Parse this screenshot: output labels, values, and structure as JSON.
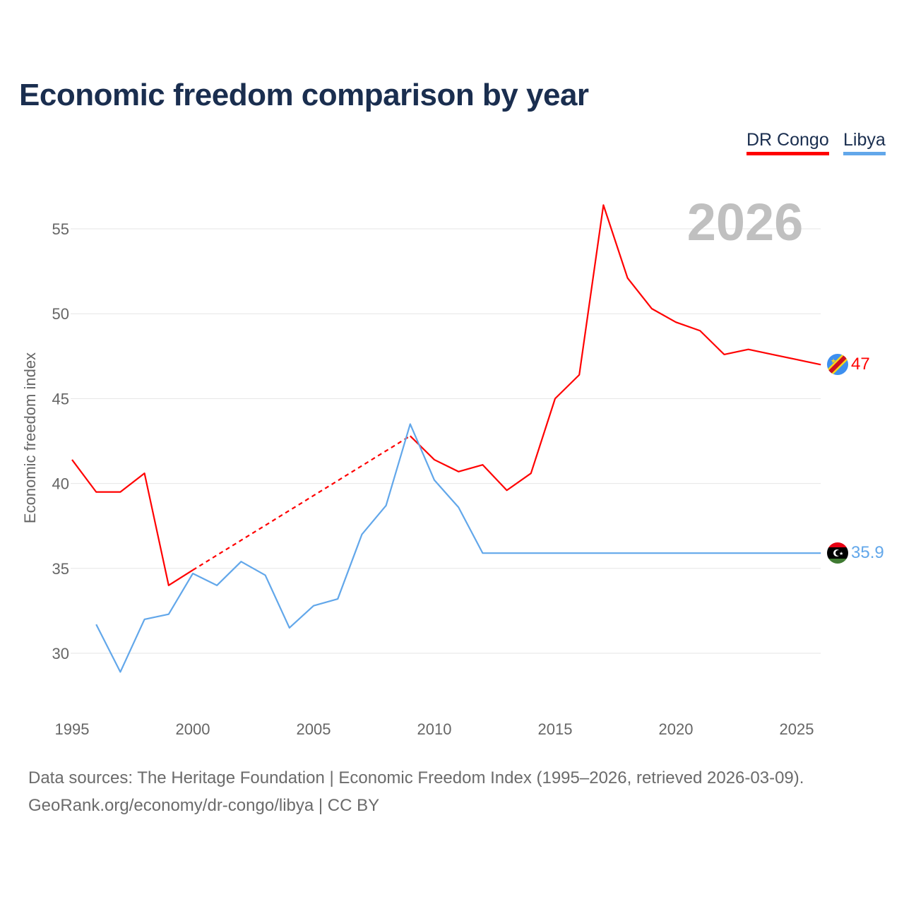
{
  "title": "Economic freedom comparison by year",
  "legend": [
    {
      "label": "DR Congo",
      "color": "#ff0000"
    },
    {
      "label": "Libya",
      "color": "#62a7ea"
    }
  ],
  "year_watermark": "2026",
  "footer": {
    "line1": "Data sources: The Heritage Foundation | Economic Freedom Index (1995–2026, retrieved 2026-03-09).",
    "line2": "GeoRank.org/economy/dr-congo/libya | CC BY"
  },
  "chart_data": {
    "type": "line",
    "title": "Economic freedom comparison by year",
    "xlabel": "",
    "ylabel": "Economic freedom index",
    "xlim": [
      1995,
      2026
    ],
    "ylim": [
      27,
      58
    ],
    "xticks": [
      1995,
      2000,
      2005,
      2010,
      2015,
      2020,
      2025
    ],
    "yticks": [
      30,
      35,
      40,
      45,
      50,
      55
    ],
    "grid": true,
    "legend_position": "top-right",
    "x": [
      1995,
      1996,
      1997,
      1998,
      1999,
      2000,
      2001,
      2002,
      2003,
      2004,
      2005,
      2006,
      2007,
      2008,
      2009,
      2010,
      2011,
      2012,
      2013,
      2014,
      2015,
      2016,
      2017,
      2018,
      2019,
      2020,
      2021,
      2022,
      2023,
      2024,
      2025,
      2026
    ],
    "series": [
      {
        "name": "DR Congo",
        "color": "#ff0000",
        "end_label": "47",
        "values": [
          41.4,
          39.5,
          39.5,
          40.6,
          34.0,
          34.9,
          null,
          null,
          null,
          null,
          null,
          null,
          null,
          null,
          42.8,
          41.4,
          40.7,
          41.1,
          39.6,
          40.6,
          45.0,
          46.4,
          56.4,
          52.1,
          50.3,
          49.5,
          49.0,
          47.6,
          47.9,
          47.6,
          47.3,
          47.0
        ]
      },
      {
        "name": "Libya",
        "color": "#62a7ea",
        "end_label": "35.9",
        "values": [
          null,
          31.7,
          28.9,
          32.0,
          32.3,
          34.7,
          34.0,
          35.4,
          34.6,
          31.5,
          32.8,
          33.2,
          37.0,
          38.7,
          43.5,
          40.2,
          38.6,
          35.9,
          35.9,
          35.9,
          35.9,
          35.9,
          35.9,
          35.9,
          35.9,
          35.9,
          35.9,
          35.9,
          35.9,
          35.9,
          35.9,
          35.9
        ]
      }
    ]
  }
}
